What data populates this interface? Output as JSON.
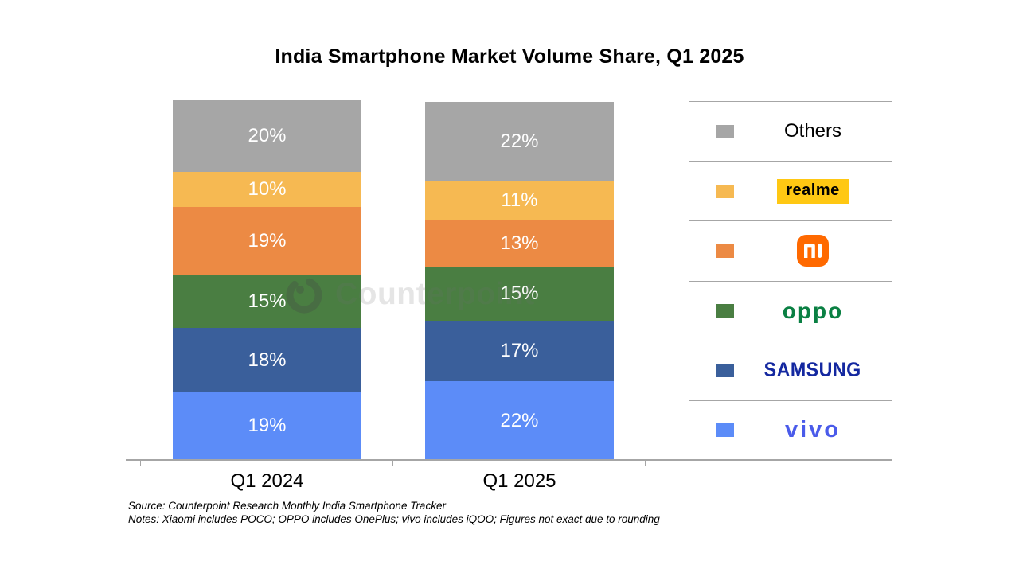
{
  "title": "India Smartphone Market Volume Share, Q1 2025",
  "chart_data": {
    "type": "bar",
    "stacked": true,
    "orientation": "vertical",
    "categories": [
      "Q1 2024",
      "Q1 2025"
    ],
    "series": [
      {
        "name": "vivo",
        "color": "#5C8CF8",
        "values": [
          19,
          22
        ]
      },
      {
        "name": "Samsung",
        "color": "#3A5F9B",
        "values": [
          18,
          17
        ]
      },
      {
        "name": "OPPO",
        "color": "#4A7E42",
        "values": [
          15,
          15
        ]
      },
      {
        "name": "Xiaomi",
        "color": "#EC8A44",
        "values": [
          19,
          13
        ]
      },
      {
        "name": "realme",
        "color": "#F6B952",
        "values": [
          10,
          11
        ]
      },
      {
        "name": "Others",
        "color": "#A6A6A6",
        "values": [
          20,
          22
        ]
      }
    ],
    "value_suffix": "%",
    "data_labels": "inside-white",
    "legend_position": "right",
    "grid": false,
    "axis_color": "#A6A6A6",
    "ylim": [
      0,
      101
    ]
  },
  "legend": {
    "items": [
      {
        "name": "Others",
        "swatch": "#A6A6A6",
        "type": "text",
        "label": "Others"
      },
      {
        "name": "realme",
        "swatch": "#F6B952",
        "type": "logo-realme",
        "label": "realme"
      },
      {
        "name": "Xiaomi",
        "swatch": "#EC8A44",
        "type": "logo-mi",
        "label": "mi"
      },
      {
        "name": "OPPO",
        "swatch": "#4A7E42",
        "type": "logo-oppo",
        "label": "oppo"
      },
      {
        "name": "Samsung",
        "swatch": "#3A5F9B",
        "type": "logo-samsung",
        "label": "SAMSUNG"
      },
      {
        "name": "vivo",
        "swatch": "#5C8CF8",
        "type": "logo-vivo",
        "label": "vivo"
      }
    ]
  },
  "watermark": {
    "text": "Counterpoint",
    "icon": "counterpoint-ring-logo"
  },
  "footer": {
    "source": "Source: Counterpoint Research Monthly India Smartphone Tracker",
    "notes": "Notes: Xiaomi includes POCO; OPPO includes OnePlus; vivo includes iQOO; Figures not exact due to rounding"
  },
  "brand_colors": {
    "realme_bg": "#FFC813",
    "realme_text": "#000000",
    "mi_bg": "#FF6900",
    "mi_mark": "#FFFFFF",
    "oppo": "#0A8043",
    "samsung": "#1428A0",
    "vivo": "#4A5BEA"
  }
}
